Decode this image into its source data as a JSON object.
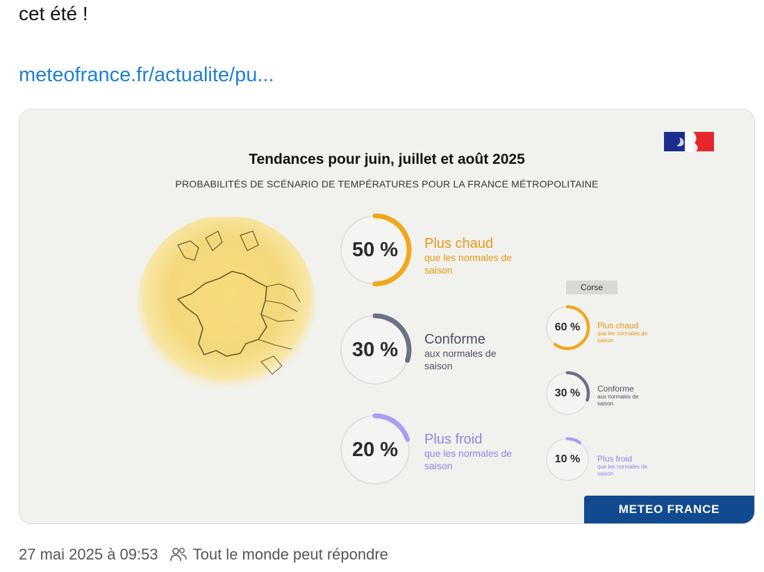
{
  "post": {
    "text": "cet été !",
    "link": "meteofrance.fr/actualite/pu..."
  },
  "infographic": {
    "title": "Tendances pour juin, juillet et août 2025",
    "subtitle": "PROBABILITÉS DE SCÉNARIO DE TEMPÉRATURES POUR LA FRANCE MÉTROPOLITAINE",
    "scenarios": [
      {
        "percent": "50 %",
        "value": 50,
        "label": "Plus chaud",
        "sub": "que les normales de saison",
        "color": "#f0a81a"
      },
      {
        "percent": "30 %",
        "value": 30,
        "label": "Conforme",
        "sub": "aux normales de saison",
        "color": "#6b7186"
      },
      {
        "percent": "20 %",
        "value": 20,
        "label": "Plus froid",
        "sub": "que les normales de saison",
        "color": "#a79ff2"
      }
    ],
    "corse": {
      "label": "Corse",
      "scenarios": [
        {
          "percent": "60 %",
          "value": 60,
          "label": "Plus chaud",
          "sub": "que les normales de saison",
          "color": "#f0a81a"
        },
        {
          "percent": "30 %",
          "value": 30,
          "label": "Conforme",
          "sub": "aux normales de saison",
          "color": "#6b7186"
        },
        {
          "percent": "10 %",
          "value": 10,
          "label": "Plus froid",
          "sub": "que les normales de saison",
          "color": "#a79ff2"
        }
      ]
    },
    "brand": "METEO FRANCE"
  },
  "footer": {
    "timestamp": "27 mai 2025 à 09:53",
    "reply_setting": "Tout le monde peut répondre"
  },
  "icons": {
    "people": "people-icon",
    "flag": "french-flag-logo"
  }
}
